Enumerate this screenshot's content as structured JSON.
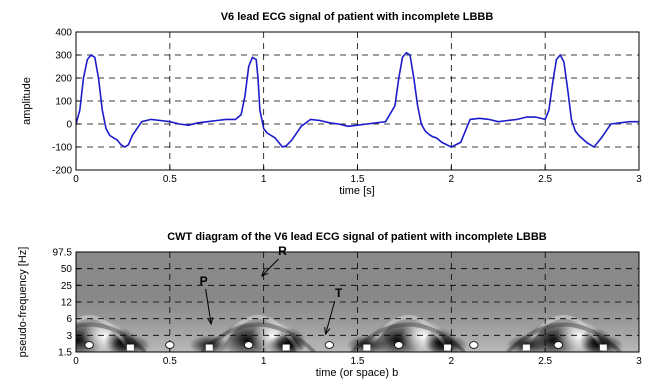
{
  "chart_data": [
    {
      "type": "line",
      "title": "V6 lead ECG signal of patient with incomplete LBBB",
      "xlabel": "time [s]",
      "ylabel": "amplitude",
      "xlim": [
        0,
        3
      ],
      "ylim": [
        -200,
        400
      ],
      "xticks": [
        0,
        0.5,
        1,
        1.5,
        2,
        2.5,
        3
      ],
      "xtick_labels": [
        "0",
        "0.5",
        "1",
        "1.5",
        "2",
        "2.5",
        "3"
      ],
      "yticks": [
        -200,
        -100,
        0,
        100,
        200,
        300,
        400
      ],
      "ytick_labels": [
        "-200",
        "-100",
        "0",
        "100",
        "200",
        "300",
        "400"
      ],
      "grid": true,
      "color": "#1c1ccc",
      "series": [
        {
          "x": [
            0,
            0.02,
            0.04,
            0.06,
            0.08,
            0.1,
            0.12,
            0.14,
            0.16,
            0.18,
            0.2,
            0.22,
            0.24,
            0.26,
            0.28,
            0.3,
            0.35,
            0.4,
            0.45,
            0.5,
            0.55,
            0.6,
            0.65,
            0.7,
            0.75,
            0.8,
            0.85,
            0.88,
            0.9,
            0.92,
            0.94,
            0.96,
            0.97,
            0.98,
            1.0,
            1.02,
            1.04,
            1.06,
            1.08,
            1.1,
            1.12,
            1.15,
            1.2,
            1.25,
            1.3,
            1.35,
            1.4,
            1.45,
            1.5,
            1.55,
            1.6,
            1.65,
            1.7,
            1.72,
            1.74,
            1.76,
            1.78,
            1.8,
            1.82,
            1.84,
            1.86,
            1.88,
            1.9,
            1.92,
            1.95,
            2.0,
            2.05,
            2.1,
            2.15,
            2.2,
            2.25,
            2.3,
            2.35,
            2.4,
            2.45,
            2.5,
            2.52,
            2.54,
            2.56,
            2.58,
            2.6,
            2.62,
            2.64,
            2.66,
            2.68,
            2.7,
            2.72,
            2.74,
            2.76,
            2.8,
            2.85,
            2.9,
            2.95,
            3.0
          ],
          "y": [
            0,
            60,
            200,
            280,
            300,
            290,
            200,
            60,
            -20,
            -50,
            -60,
            -70,
            -90,
            -100,
            -90,
            -50,
            10,
            20,
            15,
            10,
            0,
            -5,
            5,
            10,
            15,
            20,
            20,
            40,
            120,
            250,
            290,
            280,
            200,
            60,
            -20,
            -40,
            -50,
            -60,
            -80,
            -100,
            -95,
            -70,
            -10,
            20,
            15,
            5,
            0,
            -10,
            -5,
            0,
            5,
            10,
            80,
            200,
            290,
            310,
            300,
            200,
            80,
            0,
            -30,
            -45,
            -55,
            -60,
            -80,
            -100,
            -80,
            20,
            25,
            20,
            10,
            15,
            20,
            30,
            30,
            20,
            60,
            180,
            280,
            300,
            270,
            150,
            20,
            -30,
            -50,
            -65,
            -80,
            -90,
            -100,
            -60,
            0,
            5,
            10,
            10
          ]
        }
      ]
    },
    {
      "type": "heatmap",
      "title": "CWT diagram of the V6 lead ECG signal of patient with incomplete LBBB",
      "xlabel": "time (or space) b",
      "ylabel": "pseudo-frequency [Hz]",
      "xlim": [
        0,
        3
      ],
      "xticks": [
        0,
        0.5,
        1,
        1.5,
        2,
        2.5,
        3
      ],
      "xtick_labels": [
        "0",
        "0.5",
        "1",
        "1.5",
        "2",
        "2.5",
        "3"
      ],
      "ytick_labels": [
        "97.5",
        "50",
        "25",
        "12",
        "6",
        "3",
        "1.5"
      ],
      "grid": true,
      "colormap": "grayscale",
      "annotations": [
        {
          "text": "R",
          "x": 1.1,
          "tip_x": 0.99
        },
        {
          "text": "P",
          "x": 0.68,
          "tip_x": 0.72
        },
        {
          "text": "T",
          "x": 1.4,
          "tip_x": 1.33
        }
      ],
      "markers": {
        "circles_x": [
          0.07,
          0.5,
          0.92,
          1.35,
          1.72,
          2.12,
          2.57
        ],
        "squares_x": [
          0.29,
          0.71,
          1.12,
          1.55,
          1.98,
          2.4,
          2.81
        ]
      }
    }
  ]
}
